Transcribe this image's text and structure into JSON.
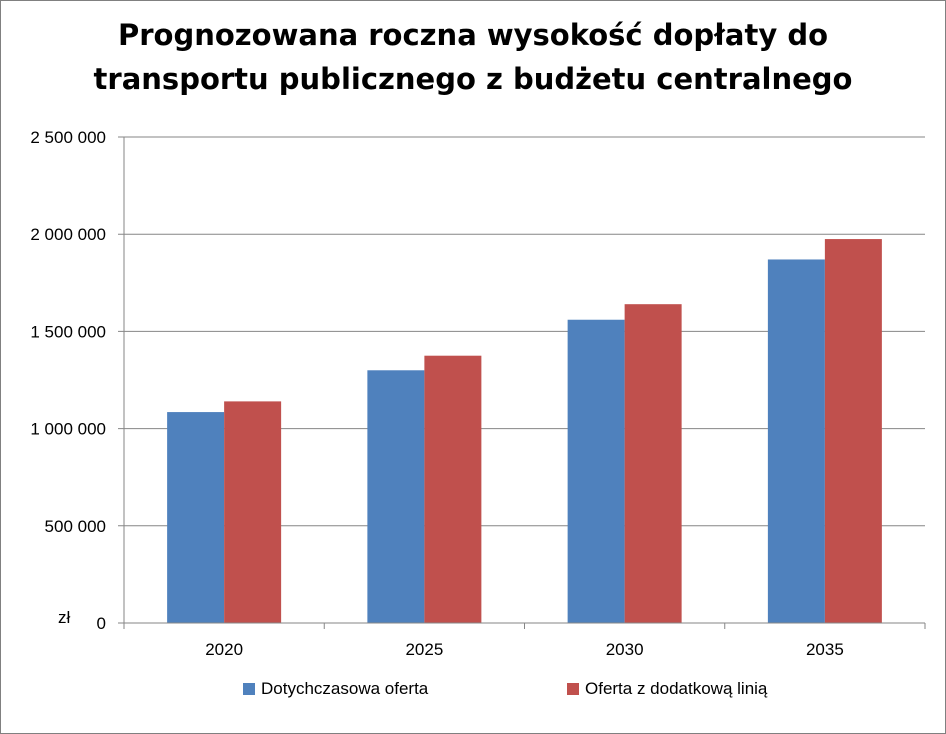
{
  "chart_data": {
    "type": "bar",
    "title_lines": [
      "Prognozowana roczna wysokość dopłaty do",
      "transportu publicznego z budżetu  centralnego"
    ],
    "unit_label": "zł",
    "categories": [
      "2020",
      "2025",
      "2030",
      "2035"
    ],
    "series": [
      {
        "name": "Dotychczasowa oferta",
        "color": "#4F81BD",
        "values": [
          1085000,
          1300000,
          1560000,
          1870000
        ]
      },
      {
        "name": "Oferta z dodatkową linią",
        "color": "#C0504D",
        "values": [
          1140000,
          1375000,
          1640000,
          1975000
        ]
      }
    ],
    "ylim": [
      0,
      2500000
    ],
    "yticks": [
      0,
      500000,
      1000000,
      1500000,
      2000000,
      2500000
    ],
    "ytick_labels": [
      "0",
      "500 000",
      "1 000 000",
      "1 500 000",
      "2 000 000",
      "2 500 000"
    ],
    "grid": true,
    "legend_position": "bottom"
  }
}
